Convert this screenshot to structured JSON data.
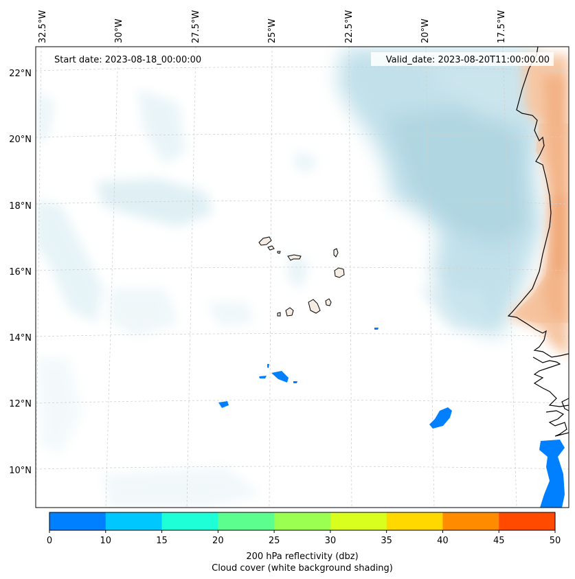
{
  "map": {
    "start_label": "Start date: 2023-08-18_00:00:00",
    "valid_label": "Valid_date: 2023-08-20T11:00:00.00",
    "lon_labels": [
      "32.5°W",
      "30°W",
      "27.5°W",
      "25°W",
      "22.5°W",
      "20°W",
      "17.5°W"
    ],
    "lat_labels": [
      "22°N",
      "20°N",
      "18°N",
      "16°N",
      "14°N",
      "12°N",
      "10°N"
    ],
    "colors": {
      "cloud": "#a9d4e2",
      "land_warm": "#f2a878",
      "reflectivity_low": "#0080ff",
      "coast": "#000000",
      "grid": "#c8c8c8"
    }
  },
  "colorbar": {
    "ticks": [
      "0",
      "10",
      "15",
      "20",
      "25",
      "30",
      "35",
      "40",
      "45",
      "50"
    ],
    "colors": [
      "#0080ff",
      "#00c8ff",
      "#1effd8",
      "#5cff8e",
      "#9aff50",
      "#d8ff1e",
      "#ffd800",
      "#ff8c00",
      "#ff4a00"
    ],
    "label_line1": "200 hPa reflectivity (dbz)",
    "label_line2": "Cloud cover (white background shading)"
  }
}
